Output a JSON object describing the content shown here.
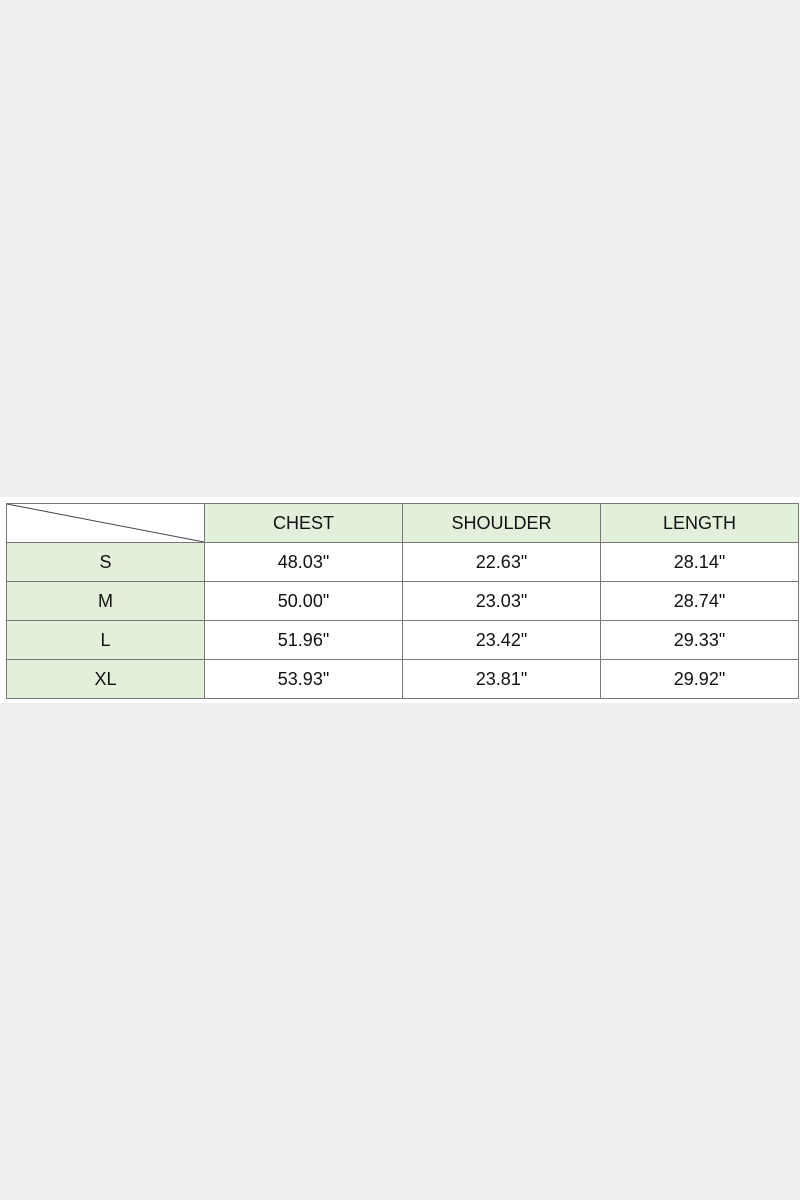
{
  "table": {
    "headers": [
      "CHEST",
      "SHOULDER",
      "LENGTH"
    ],
    "rows": [
      {
        "size": "S",
        "values": [
          "48.03\"",
          "22.63\"",
          "28.14\""
        ]
      },
      {
        "size": "M",
        "values": [
          "50.00\"",
          "23.03\"",
          "28.74\""
        ]
      },
      {
        "size": "L",
        "values": [
          "51.96\"",
          "23.42\"",
          "29.33\""
        ]
      },
      {
        "size": "XL",
        "values": [
          "53.93\"",
          "23.81\"",
          "29.92\""
        ]
      }
    ],
    "header_color": "#e2efda"
  }
}
